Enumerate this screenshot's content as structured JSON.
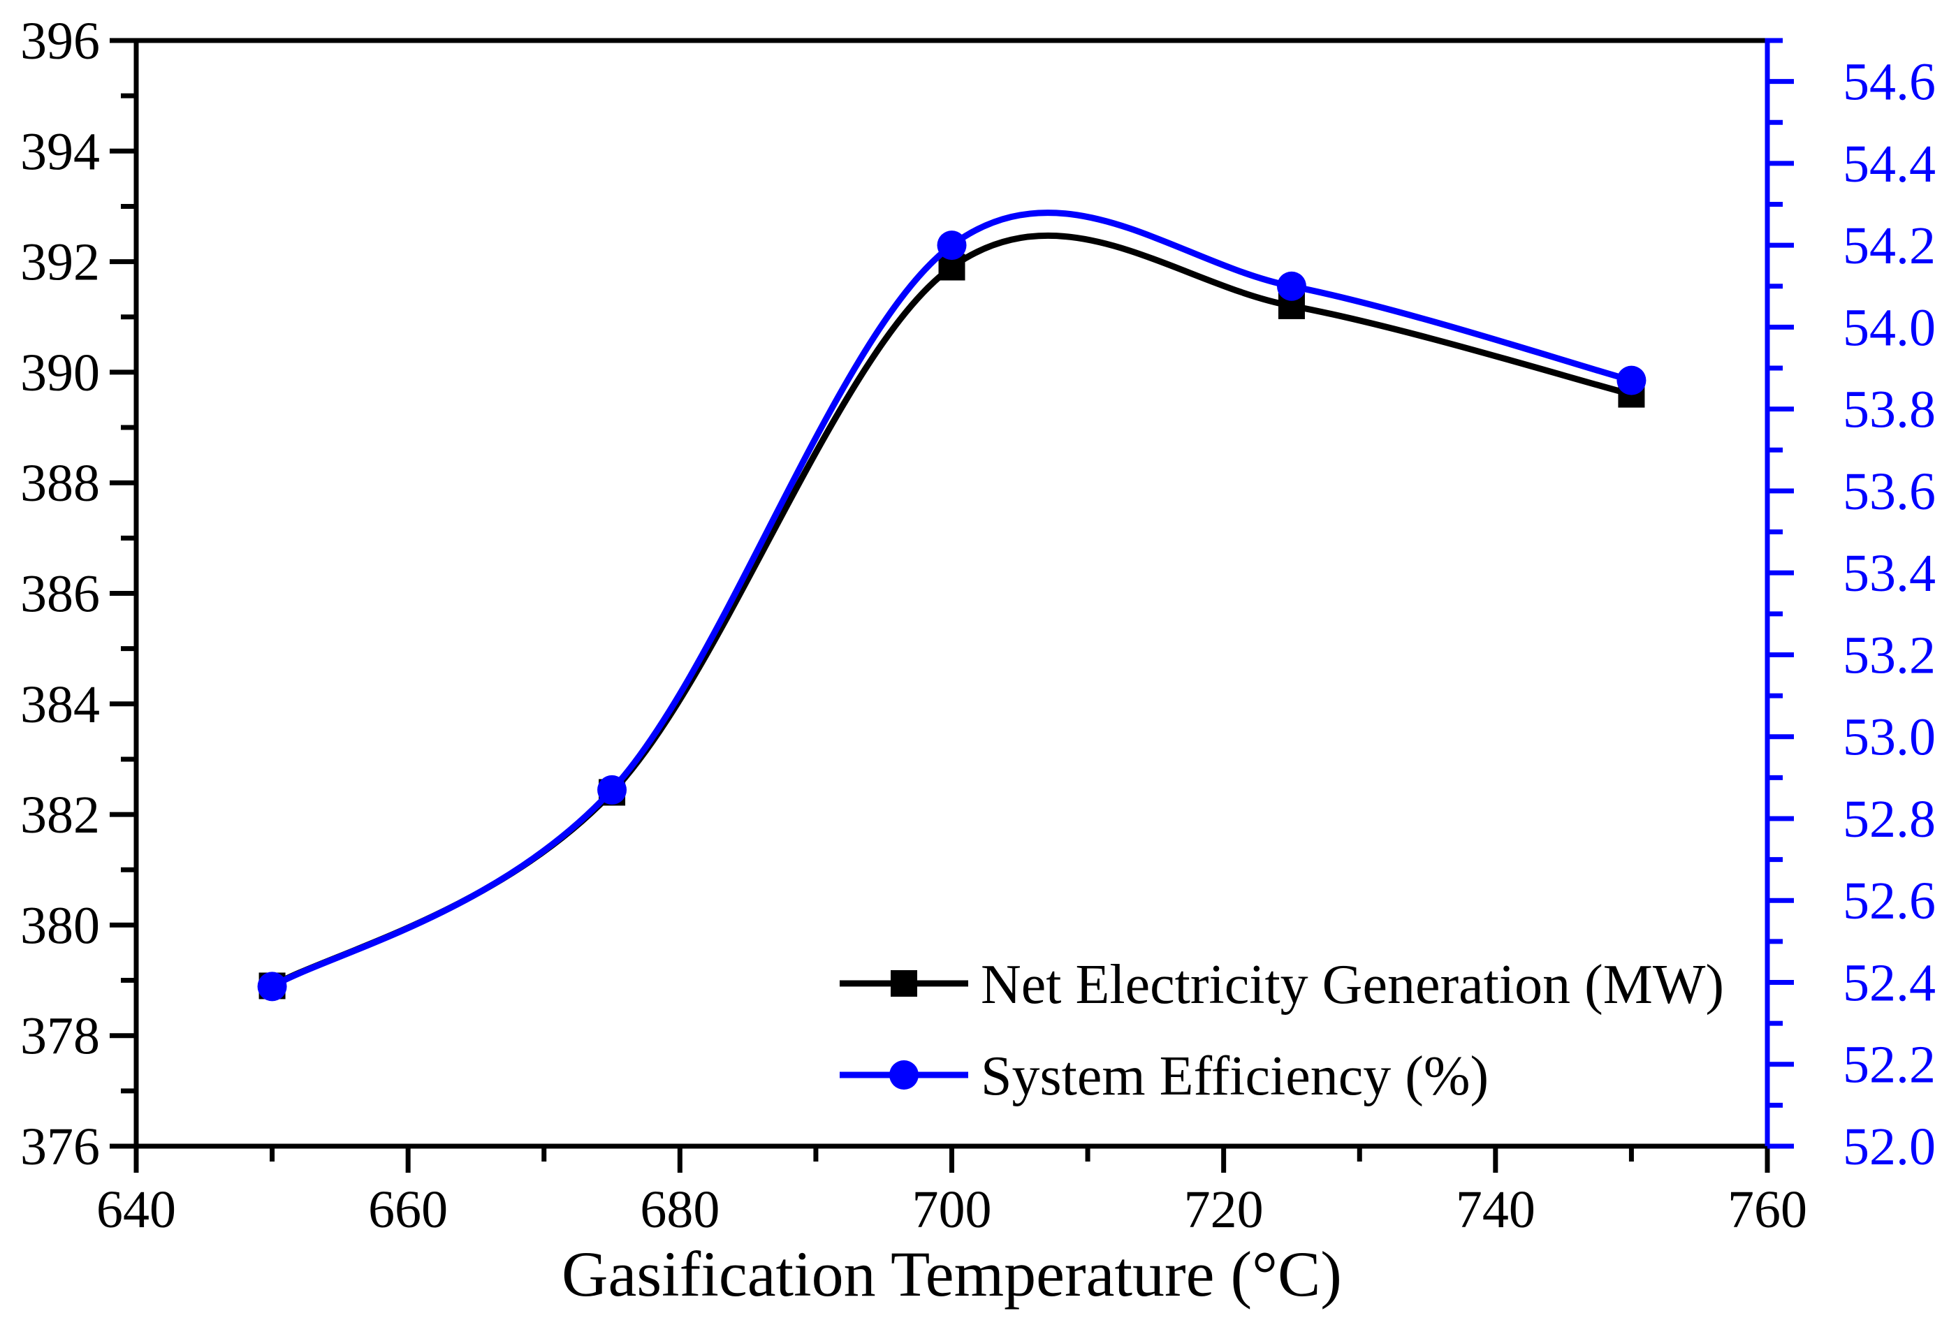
{
  "figure": {
    "background": "#ffffff",
    "black": "#000000",
    "blue": "#0000ff"
  },
  "chart_data": {
    "type": "line",
    "smoothing": "spline",
    "grid": false,
    "x": [
      650,
      675,
      700,
      725,
      750
    ],
    "series": [
      {
        "name": "Net Electricity Generation (MW)",
        "axis": "left",
        "color": "#000000",
        "marker": "square",
        "values": [
          378.9,
          382.4,
          391.9,
          391.2,
          389.6
        ]
      },
      {
        "name": "System Efficiency (%)",
        "axis": "right",
        "color": "#0000ff",
        "marker": "circle",
        "values": [
          52.39,
          52.87,
          54.2,
          54.1,
          53.87
        ]
      }
    ],
    "xlabel": "Gasification Temperature (°C)",
    "x_axis": {
      "min": 640,
      "max": 760,
      "major_step": 20,
      "minor_step": 10,
      "tick_values": [
        640,
        660,
        680,
        700,
        720,
        740,
        760
      ],
      "tick_labels": [
        "640",
        "660",
        "680",
        "700",
        "720",
        "740",
        "760"
      ],
      "minor_values": [
        650,
        670,
        690,
        710,
        730,
        750
      ]
    },
    "y_left_axis": {
      "min": 376,
      "max": 396,
      "major_step": 2,
      "minor_step": 1,
      "tick_values": [
        376,
        378,
        380,
        382,
        384,
        386,
        388,
        390,
        392,
        394,
        396
      ],
      "tick_labels": [
        "376",
        "378",
        "380",
        "382",
        "384",
        "386",
        "388",
        "390",
        "392",
        "394",
        "396"
      ],
      "minor_values": [
        377,
        379,
        381,
        383,
        385,
        387,
        389,
        391,
        393,
        395
      ]
    },
    "y_right_axis": {
      "min": 52.0,
      "max": 54.7,
      "major_step": 0.2,
      "minor_step": 0.1,
      "tick_values": [
        52.0,
        52.2,
        52.4,
        52.6,
        52.8,
        53.0,
        53.2,
        53.4,
        53.6,
        53.8,
        54.0,
        54.2,
        54.4,
        54.6
      ],
      "tick_labels": [
        "52.0",
        "52.2",
        "52.4",
        "52.6",
        "52.8",
        "53.0",
        "53.2",
        "53.4",
        "53.6",
        "53.8",
        "54.0",
        "54.2",
        "54.4",
        "54.6"
      ],
      "minor_values": [
        52.1,
        52.3,
        52.5,
        52.7,
        52.9,
        53.1,
        53.3,
        53.5,
        53.7,
        53.9,
        54.1,
        54.3,
        54.5,
        54.7
      ]
    },
    "legend": {
      "position": "inside-bottom-right",
      "entries": [
        "Net Electricity Generation (MW)",
        "System Efficiency (%)"
      ]
    }
  }
}
